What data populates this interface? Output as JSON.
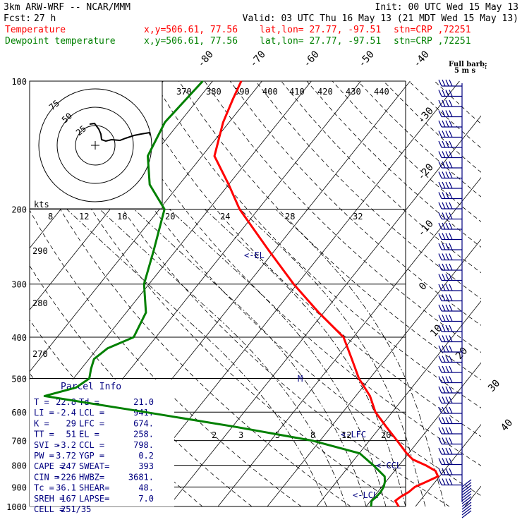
{
  "header": {
    "model": "3km ARW-WRF -- NCAR/MMM",
    "init": "Init: 00 UTC Wed 15 May 13",
    "fcst_label": "Fcst:",
    "fcst_value": "27 h",
    "valid": "Valid: 03 UTC Thu 16 May 13 (21 MDT Wed 15 May 13)",
    "lines": [
      {
        "name": "Temperature",
        "loc": "x,y=506.61, 77.56",
        "latlon": "lat,lon= 27.77, -97.51",
        "stn": "stn=CRP ,72251",
        "color": "#ff0000"
      },
      {
        "name": "Dewpoint temperature",
        "loc": "x,y=506.61, 77.56",
        "latlon": "lat,lon= 27.77, -97.51",
        "stn": "stn=CRP ,72251",
        "color": "#008000"
      }
    ]
  },
  "barb_legend": {
    "line1": "Full barb:",
    "line2": "5 m s",
    "sup": "-1"
  },
  "hodograph": {
    "kts_label": "kts",
    "ring_labels": [
      "75",
      "50",
      "25"
    ]
  },
  "parcel": {
    "title": "Parcel Info",
    "rows": [
      [
        "T   =",
        "22.8",
        "Td =",
        "21.0"
      ],
      [
        "LI  =",
        "-2.4",
        "LCL =",
        "941."
      ],
      [
        "K   =",
        "29",
        "LFC =",
        "674."
      ],
      [
        "TT  =",
        "51",
        "EL  =",
        "258."
      ],
      [
        "SVI =",
        "-3.2",
        "CCL =",
        "798."
      ],
      [
        "PW  =",
        "3.72",
        "YGP =",
        "0.2"
      ],
      [
        "CAPE =",
        "247",
        "SWEAT=",
        "393"
      ],
      [
        "CIN  =",
        "-226",
        "HWBZ=",
        "3681."
      ],
      [
        "Tc   =",
        "36.1",
        "SHEAR=",
        "48."
      ],
      [
        "SREH =",
        "167",
        "LAPSE=",
        "7.0"
      ],
      [
        "CELL =",
        "251/35",
        "",
        ""
      ]
    ]
  },
  "level_markers": {
    "el": "<-EL",
    "ccl": "<-CCL",
    "lfc": "<-LFC",
    "lcl": "<-LCL",
    "m": "M"
  },
  "chart_data": {
    "type": "line",
    "title": "",
    "ylabel": "",
    "xlabel": "",
    "y_scale": "log-pressure",
    "ylim": [
      1000,
      100
    ],
    "pressure_ticks": [
      100,
      200,
      300,
      400,
      500,
      600,
      700,
      800,
      900,
      1000
    ],
    "isotherm_labels": [
      "-80",
      "-70",
      "-60",
      "-50",
      "-40",
      "-30",
      "-20",
      "-10",
      "0",
      "10",
      "20",
      "30",
      "40"
    ],
    "theta_labels": [
      "370",
      "380",
      "390",
      "400",
      "410",
      "420",
      "430",
      "440"
    ],
    "theta_side_labels": [
      "290",
      "280",
      "270"
    ],
    "mixing_ratio_labels_upper": [
      "8",
      "12",
      "16",
      "20",
      "24",
      "28",
      "32"
    ],
    "mixing_ratio_labels_lower": [
      "2",
      "3",
      "5",
      "8",
      "12",
      "20"
    ],
    "series": [
      {
        "name": "Temperature",
        "color": "#ff0000",
        "points": [
          {
            "p": 1000,
            "t": 26.6
          },
          {
            "p": 970,
            "t": 25.0
          },
          {
            "p": 950,
            "t": 25.4
          },
          {
            "p": 925,
            "t": 26.3
          },
          {
            "p": 900,
            "t": 26.7
          },
          {
            "p": 875,
            "t": 28.2
          },
          {
            "p": 850,
            "t": 29.7
          },
          {
            "p": 825,
            "t": 28.3
          },
          {
            "p": 800,
            "t": 25.4
          },
          {
            "p": 775,
            "t": 21.8
          },
          {
            "p": 750,
            "t": 19.6
          },
          {
            "p": 700,
            "t": 15.6
          },
          {
            "p": 650,
            "t": 11.2
          },
          {
            "p": 600,
            "t": 6.6
          },
          {
            "p": 550,
            "t": 2.9
          },
          {
            "p": 500,
            "t": -2.2
          },
          {
            "p": 450,
            "t": -6.8
          },
          {
            "p": 400,
            "t": -12.0
          },
          {
            "p": 350,
            "t": -21.0
          },
          {
            "p": 300,
            "t": -30.7
          },
          {
            "p": 250,
            "t": -41.2
          },
          {
            "p": 200,
            "t": -53.8
          },
          {
            "p": 175,
            "t": -60.0
          },
          {
            "p": 150,
            "t": -67.5
          },
          {
            "p": 125,
            "t": -71.2
          },
          {
            "p": 110,
            "t": -73.0
          },
          {
            "p": 100,
            "t": -74.2
          }
        ]
      },
      {
        "name": "Dewpoint temperature",
        "color": "#008000",
        "points": [
          {
            "p": 1000,
            "t": 21.0
          },
          {
            "p": 970,
            "t": 20.2
          },
          {
            "p": 950,
            "t": 20.5
          },
          {
            "p": 925,
            "t": 20.6
          },
          {
            "p": 900,
            "t": 20.4
          },
          {
            "p": 875,
            "t": 19.8
          },
          {
            "p": 850,
            "t": 18.9
          },
          {
            "p": 800,
            "t": 14.8
          },
          {
            "p": 750,
            "t": 10.1
          },
          {
            "p": 700,
            "t": -1.6
          },
          {
            "p": 650,
            "t": -19.3
          },
          {
            "p": 600,
            "t": -40.0
          },
          {
            "p": 550,
            "t": -63.0
          },
          {
            "p": 525,
            "t": -58.0
          },
          {
            "p": 500,
            "t": -56.8
          },
          {
            "p": 475,
            "t": -58.0
          },
          {
            "p": 450,
            "t": -59.0
          },
          {
            "p": 425,
            "t": -58.0
          },
          {
            "p": 400,
            "t": -54.5
          },
          {
            "p": 350,
            "t": -56.0
          },
          {
            "p": 300,
            "t": -61.0
          },
          {
            "p": 250,
            "t": -64.5
          },
          {
            "p": 200,
            "t": -69.0
          },
          {
            "p": 175,
            "t": -76.0
          },
          {
            "p": 150,
            "t": -81.0
          },
          {
            "p": 125,
            "t": -83.0
          },
          {
            "p": 100,
            "t": -82.0
          }
        ]
      }
    ]
  }
}
